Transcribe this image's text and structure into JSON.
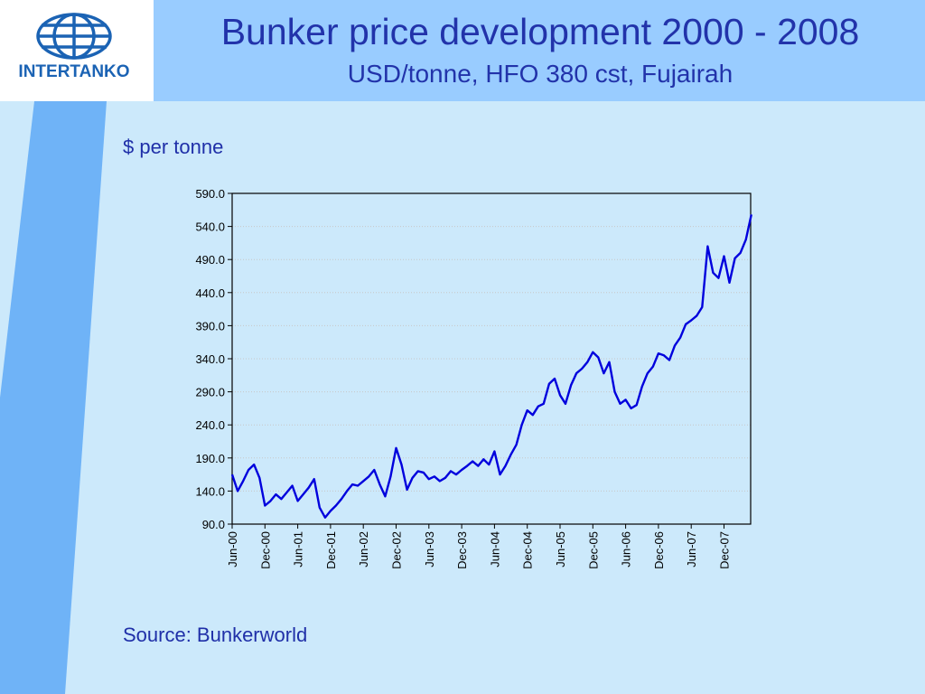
{
  "logo": {
    "text": "INTERTANKO",
    "icon": "globe-icon",
    "color": "#1b63b4"
  },
  "header": {
    "title": "Bunker price development  2000 - 2008",
    "subtitle": "USD/tonne, HFO 380 cst, Fujairah"
  },
  "unit_label": "$ per tonne",
  "source": "Source: Bunkerworld",
  "colors": {
    "series": "#0000dd",
    "title": "#2233aa",
    "header_band": "#99ccff",
    "background": "#cce9fb"
  },
  "chart_data": {
    "type": "line",
    "title": "",
    "xlabel": "",
    "ylabel": "",
    "ylim": [
      90,
      590
    ],
    "yticks": [
      "590.0",
      "540.0",
      "490.0",
      "440.0",
      "390.0",
      "340.0",
      "290.0",
      "240.0",
      "190.0",
      "140.0",
      "90.0"
    ],
    "xticks": [
      "Jun-00",
      "Dec-00",
      "Jun-01",
      "Dec-01",
      "Jun-02",
      "Dec-02",
      "Jun-03",
      "Dec-03",
      "Jun-04",
      "Dec-04",
      "Jun-05",
      "Dec-05",
      "Jun-06",
      "Dec-06",
      "Jun-07",
      "Dec-07"
    ],
    "grid": true,
    "legend": "none",
    "series": [
      {
        "name": "",
        "x": [
          "2000-06",
          "2000-07",
          "2000-08",
          "2000-09",
          "2000-10",
          "2000-11",
          "2000-12",
          "2001-01",
          "2001-02",
          "2001-03",
          "2001-04",
          "2001-05",
          "2001-06",
          "2001-07",
          "2001-08",
          "2001-09",
          "2001-10",
          "2001-11",
          "2001-12",
          "2002-01",
          "2002-02",
          "2002-03",
          "2002-04",
          "2002-05",
          "2002-06",
          "2002-07",
          "2002-08",
          "2002-09",
          "2002-10",
          "2002-11",
          "2002-12",
          "2003-01",
          "2003-02",
          "2003-03",
          "2003-04",
          "2003-05",
          "2003-06",
          "2003-07",
          "2003-08",
          "2003-09",
          "2003-10",
          "2003-11",
          "2003-12",
          "2004-01",
          "2004-02",
          "2004-03",
          "2004-04",
          "2004-05",
          "2004-06",
          "2004-07",
          "2004-08",
          "2004-09",
          "2004-10",
          "2004-11",
          "2004-12",
          "2005-01",
          "2005-02",
          "2005-03",
          "2005-04",
          "2005-05",
          "2005-06",
          "2005-07",
          "2005-08",
          "2005-09",
          "2005-10",
          "2005-11",
          "2005-12",
          "2006-01",
          "2006-02",
          "2006-03",
          "2006-04",
          "2006-05",
          "2006-06",
          "2006-07",
          "2006-08",
          "2006-09",
          "2006-10",
          "2006-11",
          "2006-12",
          "2007-01",
          "2007-02",
          "2007-03",
          "2007-04",
          "2007-05",
          "2007-06",
          "2007-07",
          "2007-08",
          "2007-09",
          "2007-10",
          "2007-11",
          "2007-12",
          "2008-01",
          "2008-02",
          "2008-03",
          "2008-04",
          "2008-05"
        ],
        "values": [
          165,
          140,
          155,
          172,
          180,
          160,
          118,
          125,
          135,
          128,
          138,
          148,
          125,
          135,
          145,
          158,
          115,
          100,
          110,
          118,
          128,
          140,
          150,
          148,
          155,
          162,
          172,
          150,
          132,
          162,
          205,
          180,
          142,
          160,
          170,
          168,
          158,
          162,
          155,
          160,
          170,
          165,
          172,
          178,
          185,
          178,
          188,
          180,
          200,
          165,
          178,
          195,
          210,
          240,
          262,
          255,
          268,
          272,
          302,
          310,
          285,
          272,
          300,
          318,
          325,
          335,
          350,
          342,
          318,
          335,
          290,
          272,
          278,
          265,
          270,
          298,
          318,
          328,
          348,
          345,
          338,
          360,
          372,
          392,
          398,
          405,
          418,
          510,
          470,
          462,
          495,
          455,
          492,
          500,
          520,
          558
        ]
      }
    ]
  }
}
